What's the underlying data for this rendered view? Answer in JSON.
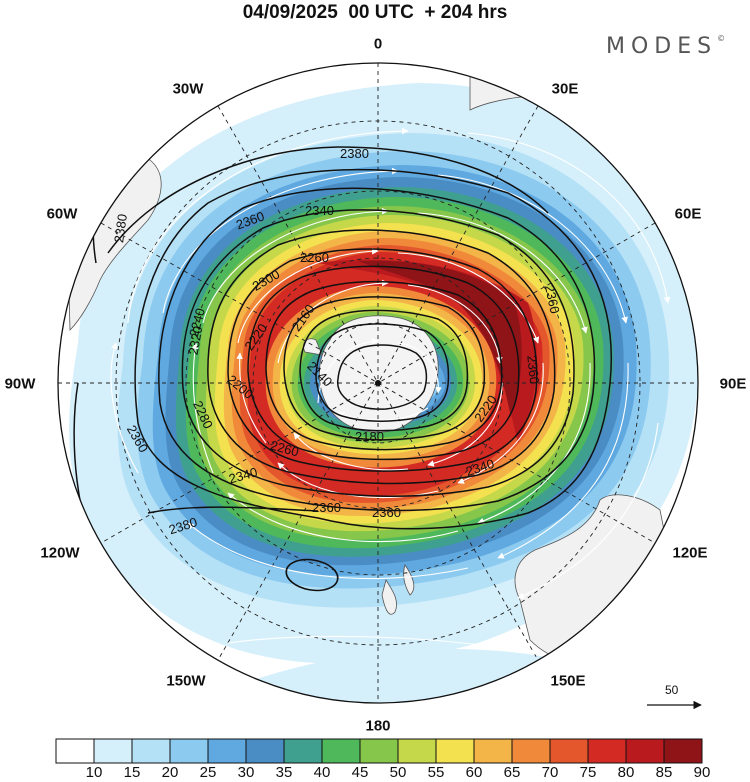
{
  "header": {
    "title": "04/09/2025  00 UTC  + 204 hrs",
    "brand": "MODES",
    "brand_mark": "©"
  },
  "map": {
    "projection": "polar-stereographic-south",
    "longitude_labels": [
      "0",
      "30E",
      "60E",
      "90E",
      "120E",
      "150E",
      "180",
      "150W",
      "120W",
      "90W",
      "60W",
      "30W"
    ],
    "contour_labels": [
      "2380",
      "2380",
      "2380",
      "2360",
      "2360",
      "2360",
      "2360",
      "2360",
      "2360",
      "2340",
      "2340",
      "2340",
      "2320",
      "2300",
      "2280",
      "2260",
      "2260",
      "2240",
      "2220",
      "2220",
      "2200",
      "2160",
      "2140",
      "2180"
    ],
    "reference_vector": {
      "value": "50"
    }
  },
  "colorbar": {
    "ticks": [
      "10",
      "15",
      "20",
      "25",
      "30",
      "35",
      "40",
      "45",
      "50",
      "55",
      "60",
      "65",
      "70",
      "75",
      "80",
      "85",
      "90"
    ],
    "colors": [
      "#ffffff",
      "#d6f0fb",
      "#b5e1f7",
      "#8ccaf0",
      "#5fa9e0",
      "#4a8cc4",
      "#3fa090",
      "#4fb85a",
      "#86c64a",
      "#c5d84a",
      "#f3e150",
      "#f4b548",
      "#f08a3a",
      "#e4572c",
      "#d42a24",
      "#b81a1e",
      "#8e1418"
    ]
  }
}
